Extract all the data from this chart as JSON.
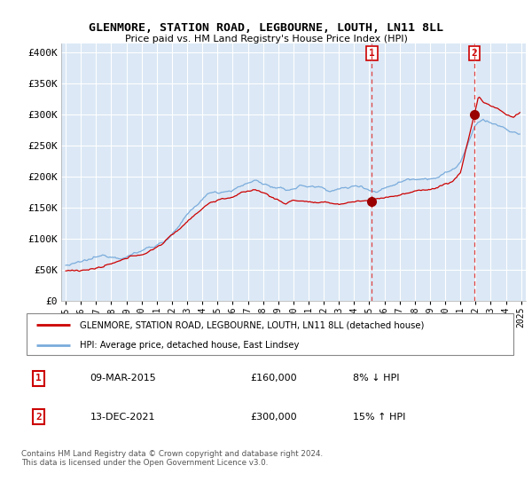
{
  "title": "GLENMORE, STATION ROAD, LEGBOURNE, LOUTH, LN11 8LL",
  "subtitle": "Price paid vs. HM Land Registry's House Price Index (HPI)",
  "legend_line1": "GLENMORE, STATION ROAD, LEGBOURNE, LOUTH, LN11 8LL (detached house)",
  "legend_line2": "HPI: Average price, detached house, East Lindsey",
  "annotation1_date": "09-MAR-2015",
  "annotation1_price": "£160,000",
  "annotation1_hpi": "8% ↓ HPI",
  "annotation2_date": "13-DEC-2021",
  "annotation2_price": "£300,000",
  "annotation2_hpi": "15% ↑ HPI",
  "footer": "Contains HM Land Registry data © Crown copyright and database right 2024.\nThis data is licensed under the Open Government Licence v3.0.",
  "vline1_x": 2015.17,
  "vline2_x": 2021.92,
  "transaction1_x": 2015.17,
  "transaction1_y": 160000,
  "transaction2_x": 2021.92,
  "transaction2_y": 300000,
  "red_color": "#cc0000",
  "blue_color": "#7aacdc",
  "bg_color": "#dce8f5",
  "ytick_labels": [
    "£0",
    "£50K",
    "£100K",
    "£150K",
    "£200K",
    "£250K",
    "£300K",
    "£350K",
    "£400K"
  ],
  "ytick_values": [
    0,
    50000,
    100000,
    150000,
    200000,
    250000,
    300000,
    350000,
    400000
  ],
  "ylim": [
    0,
    415000
  ],
  "xlim": [
    1994.7,
    2025.3
  ]
}
